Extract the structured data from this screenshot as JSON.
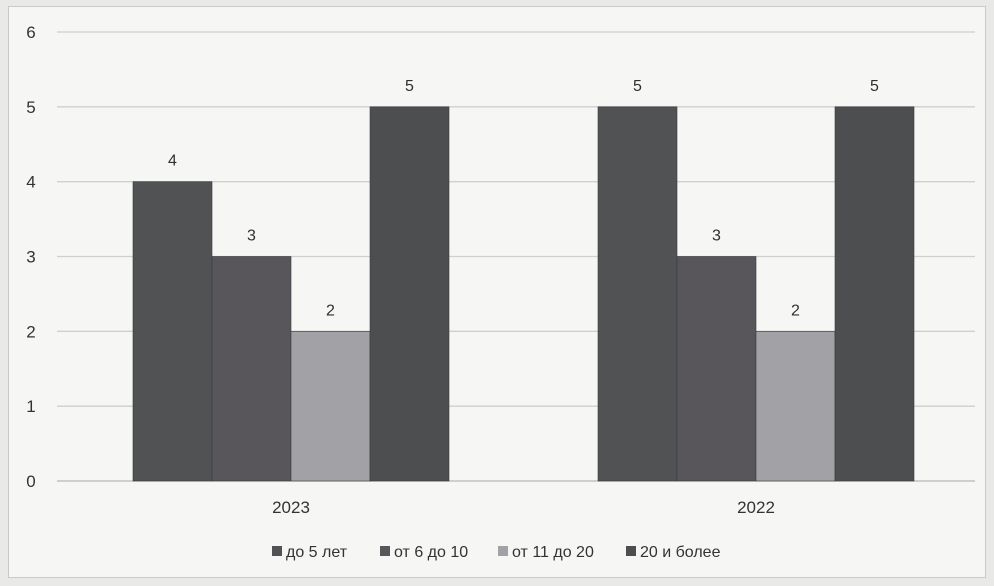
{
  "chart_data": {
    "type": "bar",
    "categories": [
      "2023",
      "2022"
    ],
    "series": [
      {
        "name": "до 5 лет",
        "values": [
          4,
          5
        ],
        "color": "#505254"
      },
      {
        "name": "от 6 до 10",
        "values": [
          3,
          3
        ],
        "color": "#58565a"
      },
      {
        "name": "от 11 до 20",
        "values": [
          2,
          2
        ],
        "color": "#a2a1a6"
      },
      {
        "name": "20 и более",
        "values": [
          5,
          5
        ],
        "color": "#4c4e50"
      }
    ],
    "ylim": [
      0,
      6
    ],
    "yticks": [
      0,
      1,
      2,
      3,
      4,
      5,
      6
    ],
    "grid": true,
    "legend_position": "bottom",
    "data_labels": true
  }
}
